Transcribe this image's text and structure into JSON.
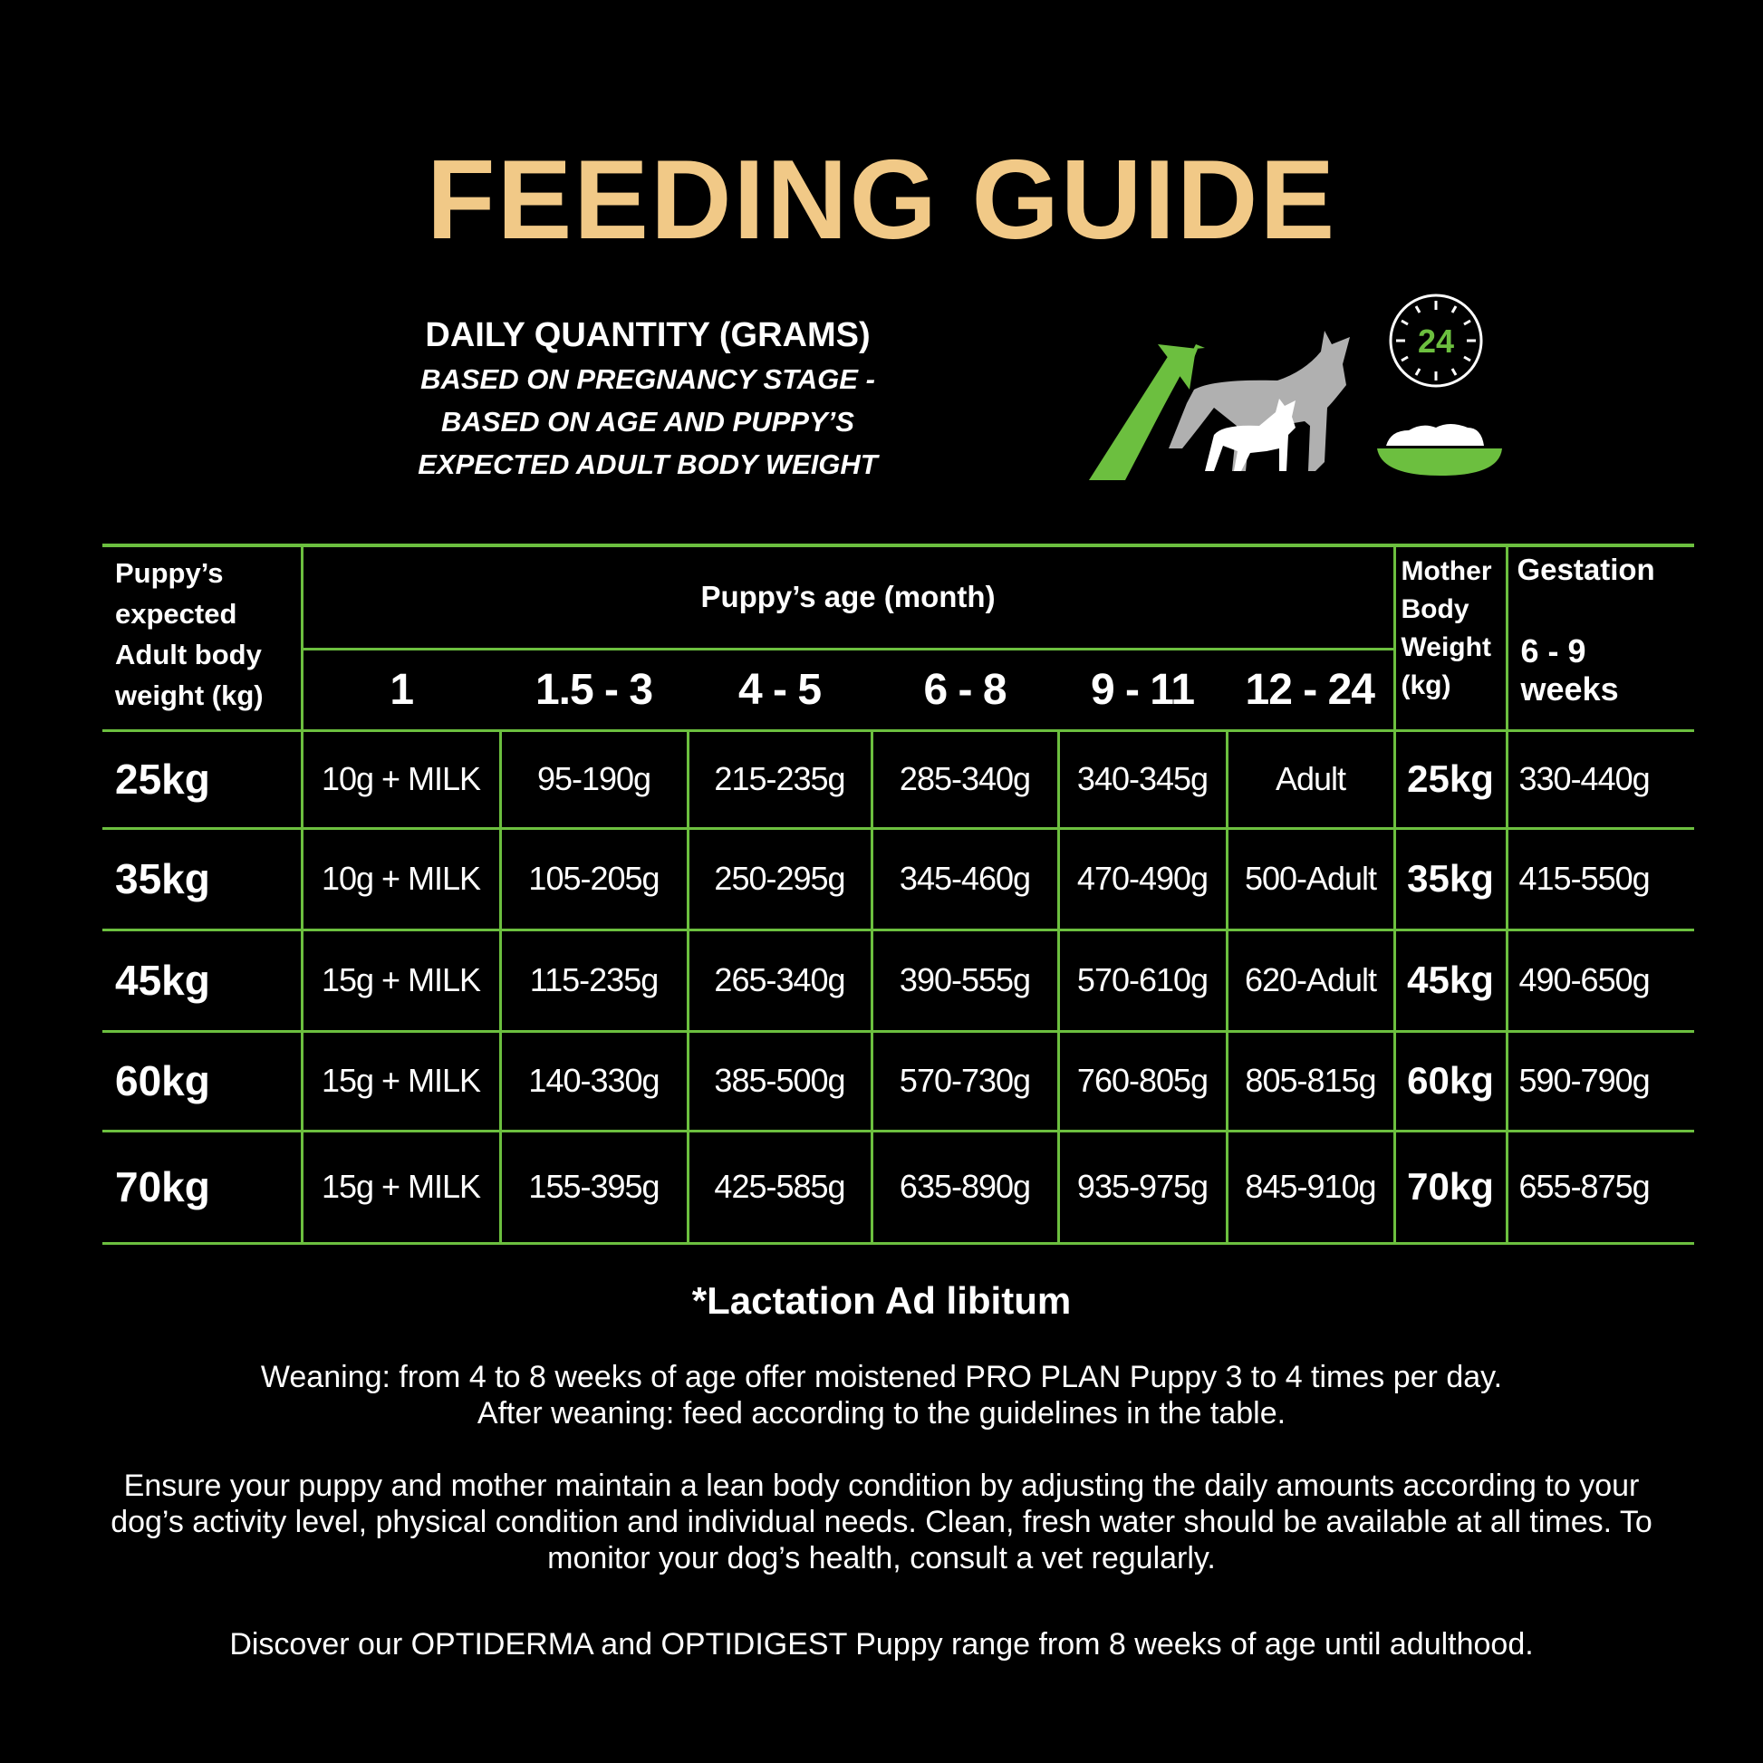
{
  "title": "FEEDING GUIDE",
  "subtitle": {
    "line1": "DAILY QUANTITY (GRAMS)",
    "line2": "BASED ON PREGNANCY STAGE -",
    "line3": "BASED ON AGE AND PUPPY’S",
    "line4": "EXPECTED ADULT BODY WEIGHT"
  },
  "icons": {
    "growth": "growth-arrow-icon",
    "dogs": "mother-and-puppy-dog-icon",
    "clock": "24-hour-clock-icon",
    "clock_label": "24",
    "bowl": "food-bowl-icon"
  },
  "colors": {
    "accent": "#6cbf3f",
    "title": "#f1c987",
    "background": "#000000"
  },
  "table": {
    "header_weight": [
      "Puppy’s",
      "expected",
      "Adult body",
      "weight (kg)"
    ],
    "header_age": "Puppy’s age (month)",
    "age_columns": [
      "1",
      "1.5 - 3",
      "4 - 5",
      "6 - 8",
      "9 - 11",
      "12 - 24"
    ],
    "header_mother": [
      "Mother",
      "Body",
      "Weight",
      "(kg)"
    ],
    "header_gestation": "Gestation",
    "header_gestation_weeks": [
      "6 - 9",
      "weeks"
    ],
    "rows": [
      {
        "weight": "25kg",
        "values": [
          "10g + MILK",
          "95-190g",
          "215-235g",
          "285-340g",
          "340-345g",
          "Adult"
        ],
        "mother": "25kg",
        "gestation": "330-440g"
      },
      {
        "weight": "35kg",
        "values": [
          "10g + MILK",
          "105-205g",
          "250-295g",
          "345-460g",
          "470-490g",
          "500-Adult"
        ],
        "mother": "35kg",
        "gestation": "415-550g"
      },
      {
        "weight": "45kg",
        "values": [
          "15g + MILK",
          "115-235g",
          "265-340g",
          "390-555g",
          "570-610g",
          "620-Adult"
        ],
        "mother": "45kg",
        "gestation": "490-650g"
      },
      {
        "weight": "60kg",
        "values": [
          "15g + MILK",
          "140-330g",
          "385-500g",
          "570-730g",
          "760-805g",
          "805-815g"
        ],
        "mother": "60kg",
        "gestation": "590-790g"
      },
      {
        "weight": "70kg",
        "values": [
          "15g + MILK",
          "155-395g",
          "425-585g",
          "635-890g",
          "935-975g",
          "845-910g"
        ],
        "mother": "70kg",
        "gestation": "655-875g"
      }
    ]
  },
  "lactation": "*Lactation Ad libitum",
  "paragraphs": {
    "weaning1": "Weaning: from 4 to 8 weeks of age offer moistened PRO PLAN Puppy 3 to 4 times per day.",
    "weaning2": "After weaning: feed according to the guidelines in the table.",
    "ensure": "Ensure your puppy and mother maintain a lean body condition by adjusting the daily amounts according to your dog’s activity level, physical condition and individual needs. Clean, fresh water should be available at all times. To monitor your dog’s health, consult a vet regularly.",
    "discover": "Discover our OPTIDERMA and OPTIDIGEST Puppy range from 8 weeks of age until adulthood."
  }
}
